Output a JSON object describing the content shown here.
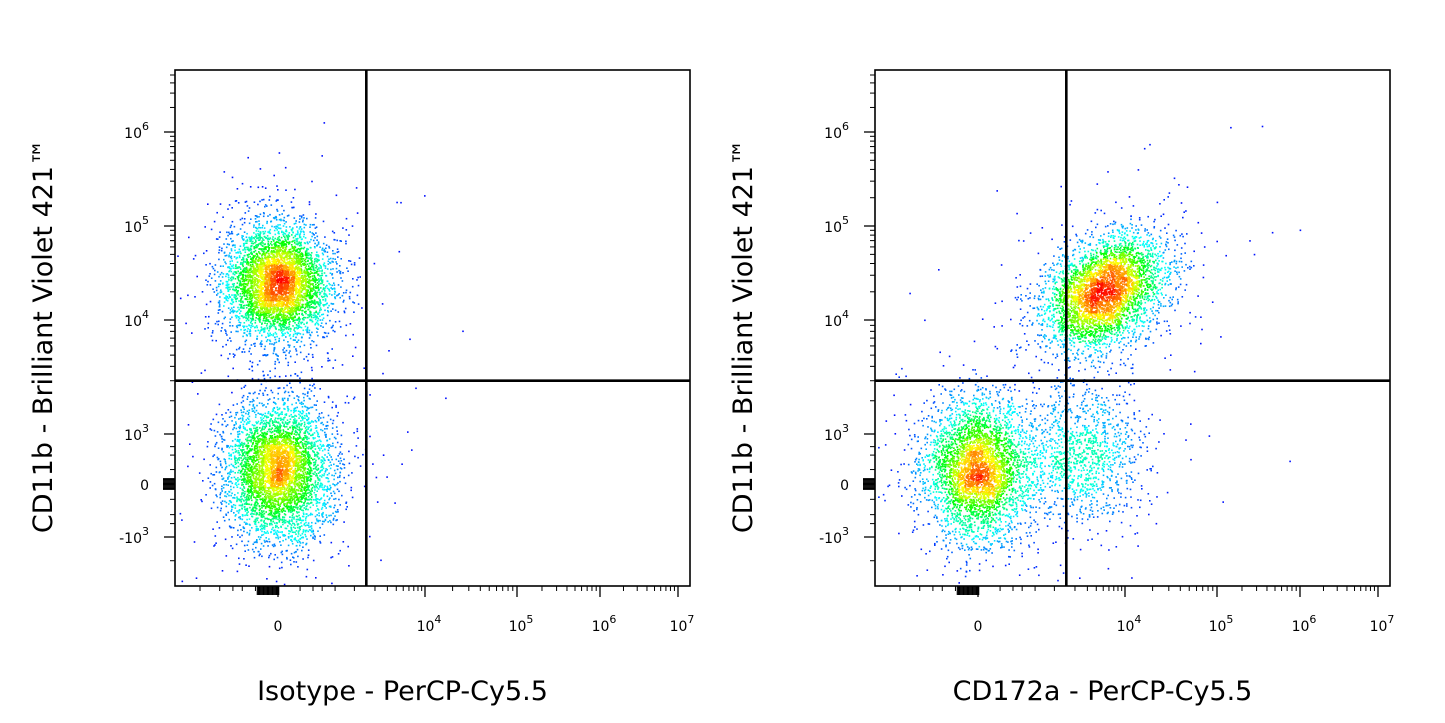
{
  "chart_data": [
    {
      "type": "scatter",
      "subtype": "flow-cytometry-density-dot-plot",
      "xlabel": "Isotype - PerCP-Cy5.5",
      "ylabel": "CD11b - Brilliant Violet 421™",
      "x_scale": "biexponential",
      "y_scale": "biexponential",
      "x_ticks": [
        {
          "value": 0,
          "base": "0",
          "exp": ""
        },
        {
          "value": 10000,
          "base": "10",
          "exp": "4"
        },
        {
          "value": 100000,
          "base": "10",
          "exp": "5"
        },
        {
          "value": 1000000,
          "base": "10",
          "exp": "6"
        },
        {
          "value": 10000000,
          "base": "10",
          "exp": "7"
        }
      ],
      "y_ticks": [
        {
          "value": 1000000,
          "base": "10",
          "exp": "6"
        },
        {
          "value": 100000,
          "base": "10",
          "exp": "5"
        },
        {
          "value": 10000,
          "base": "10",
          "exp": "4"
        },
        {
          "value": 1000,
          "base": "10",
          "exp": "3"
        },
        {
          "value": 0,
          "base": "0",
          "exp": ""
        },
        {
          "value": -1000,
          "base": "-10",
          "exp": "3"
        }
      ],
      "quadrant_gate": {
        "x": 1500,
        "y": 3000
      },
      "populations": [
        {
          "x_center": 0,
          "y_center": 25000,
          "share": 0.5
        },
        {
          "x_center": 0,
          "y_center": 100,
          "share": 0.5
        }
      ],
      "colormap": [
        "#0000ff",
        "#00ffff",
        "#00ff00",
        "#ffff00",
        "#ff0000"
      ],
      "grid": false,
      "legend": "none"
    },
    {
      "type": "scatter",
      "subtype": "flow-cytometry-density-dot-plot",
      "xlabel": "CD172a - PerCP-Cy5.5",
      "ylabel": "CD11b - Brilliant Violet 421™",
      "x_scale": "biexponential",
      "y_scale": "biexponential",
      "x_ticks": [
        {
          "value": 0,
          "base": "0",
          "exp": ""
        },
        {
          "value": 10000,
          "base": "10",
          "exp": "4"
        },
        {
          "value": 100000,
          "base": "10",
          "exp": "5"
        },
        {
          "value": 1000000,
          "base": "10",
          "exp": "6"
        },
        {
          "value": 10000000,
          "base": "10",
          "exp": "7"
        }
      ],
      "y_ticks": [
        {
          "value": 1000000,
          "base": "10",
          "exp": "6"
        },
        {
          "value": 100000,
          "base": "10",
          "exp": "5"
        },
        {
          "value": 10000,
          "base": "10",
          "exp": "4"
        },
        {
          "value": 1000,
          "base": "10",
          "exp": "3"
        },
        {
          "value": 0,
          "base": "0",
          "exp": ""
        },
        {
          "value": -1000,
          "base": "-10",
          "exp": "3"
        }
      ],
      "quadrant_gate": {
        "x": 1500,
        "y": 3000
      },
      "populations": [
        {
          "x_center": 5000,
          "y_center": 20000,
          "share": 0.45
        },
        {
          "x_center": 0,
          "y_center": 100,
          "share": 0.42
        },
        {
          "x_center": 2500,
          "y_center": 300,
          "share": 0.13
        }
      ],
      "colormap": [
        "#0000ff",
        "#00ffff",
        "#00ff00",
        "#ffff00",
        "#ff0000"
      ],
      "grid": false,
      "legend": "none"
    }
  ]
}
